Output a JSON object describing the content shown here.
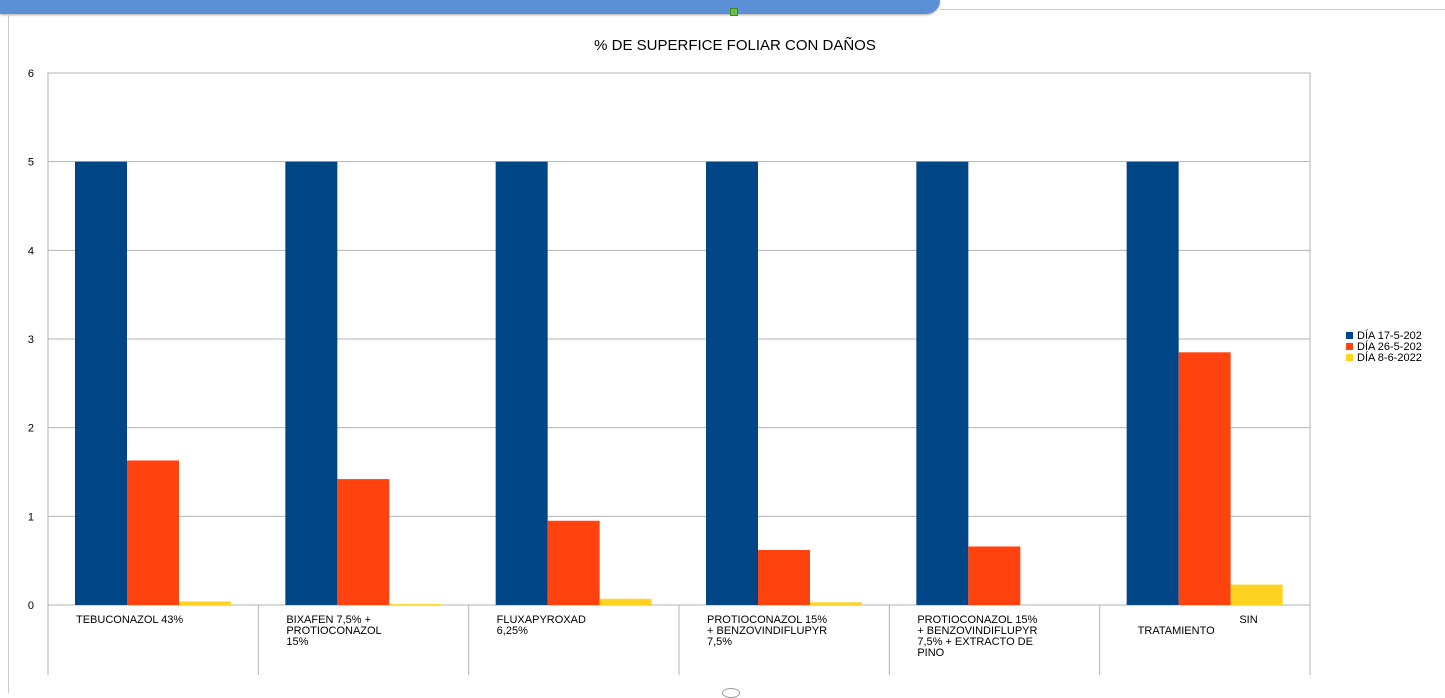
{
  "chart_data": {
    "type": "bar",
    "title": "% DE SUPERFICE FOLIAR CON DAÑOS",
    "xlabel": "",
    "ylabel": "",
    "ylim": [
      0,
      6
    ],
    "yticks": [
      "0",
      "1",
      "2",
      "3",
      "4",
      "5",
      "6"
    ],
    "grid": true,
    "legend_position": "right",
    "categories": [
      [
        "TEBUCONAZOL 43%"
      ],
      [
        "BIXAFEN 7,5% +",
        "PROTIOCONAZOL",
        "15%"
      ],
      [
        "FLUXAPYROXAD",
        "6,25%"
      ],
      [
        "PROTIOCONAZOL 15%",
        "+ BENZOVINDIFLUPYR",
        "7,5%"
      ],
      [
        "PROTIOCONAZOL 15%",
        "+ BENZOVINDIFLUPYR",
        "7,5% + EXTRACTO DE",
        "PINO"
      ],
      [
        "SIN",
        "TRATAMIENTO"
      ]
    ],
    "series": [
      {
        "name": "DÍA 17-5-2022",
        "legend_text": "DÍA 17-5-202",
        "color": "#004586",
        "values": [
          5,
          5,
          5,
          5,
          5,
          5
        ]
      },
      {
        "name": "DÍA 26-5-2022",
        "legend_text": "DÍA 26-5-202",
        "color": "#ff420e",
        "values": [
          1.63,
          1.42,
          0.95,
          0.62,
          0.66,
          2.85
        ]
      },
      {
        "name": "DÍA 8-6-2022",
        "legend_text": "DÍA 8-6-2022",
        "color": "#ffd320",
        "values": [
          0.04,
          0.01,
          0.07,
          0.03,
          0,
          0.23
        ]
      }
    ]
  }
}
